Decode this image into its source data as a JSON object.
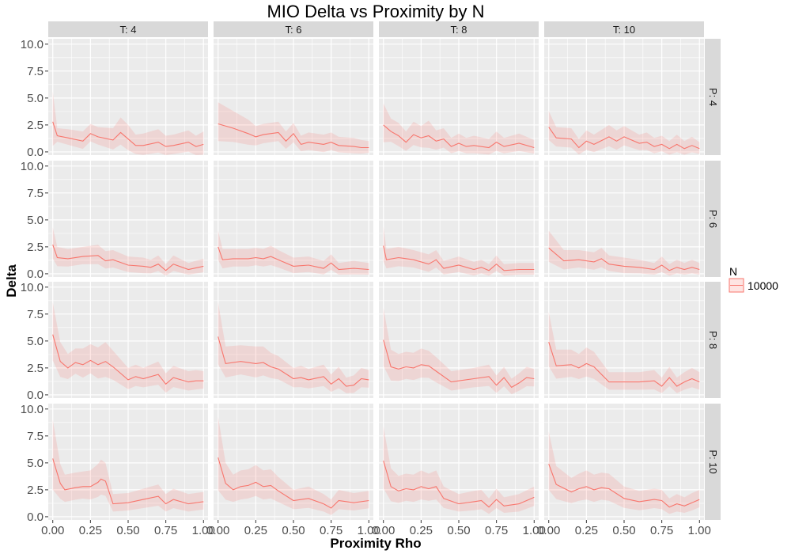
{
  "chart_data": {
    "type": "line",
    "title": "MIO Delta vs Proximity by N",
    "xlabel": "Proximity Rho",
    "ylabel": "Delta",
    "xlim": [
      -0.03,
      1.03
    ],
    "ylim": [
      -0.3,
      10.5
    ],
    "x_ticks": [
      "0.00",
      "0.25",
      "0.50",
      "0.75",
      "1.00"
    ],
    "y_ticks": [
      "0.0",
      "2.5",
      "5.0",
      "7.5",
      "10.0"
    ],
    "grid": true,
    "legend_position": "right",
    "legend": {
      "title": "N",
      "entries": [
        "10000"
      ]
    },
    "colors": {
      "line": "#F8766D",
      "ribbon": "#F8766D",
      "panel_bg": "#EBEBEB",
      "strip_bg": "#D9D9D9"
    },
    "columns": [
      "T: 4",
      "T: 6",
      "T: 8",
      "T: 10"
    ],
    "rows": [
      "P: 4",
      "P: 6",
      "P: 8",
      "P: 10"
    ],
    "panels": [
      [
        {
          "x": [
            0,
            0.03,
            0.1,
            0.2,
            0.25,
            0.3,
            0.4,
            0.45,
            0.5,
            0.55,
            0.6,
            0.7,
            0.75,
            0.8,
            0.9,
            0.95,
            1.0
          ],
          "y": [
            2.8,
            1.5,
            1.3,
            1.0,
            1.7,
            1.4,
            1.1,
            1.8,
            1.2,
            0.6,
            0.6,
            0.9,
            0.5,
            0.6,
            0.9,
            0.5,
            0.7
          ],
          "spread": [
            2.8,
            0.7,
            0.8,
            0.9,
            0.9,
            0.9,
            1.1,
            1.4,
            1.3,
            1.0,
            1.1,
            1.2,
            1.0,
            1.0,
            1.1,
            1.0,
            1.2
          ]
        },
        {
          "x": [
            0,
            0.1,
            0.2,
            0.25,
            0.3,
            0.4,
            0.45,
            0.5,
            0.55,
            0.6,
            0.7,
            0.75,
            0.8,
            0.9,
            0.95,
            1.0
          ],
          "y": [
            2.6,
            2.2,
            1.7,
            1.4,
            1.6,
            1.8,
            1.0,
            1.7,
            0.7,
            0.9,
            0.7,
            0.9,
            0.6,
            0.5,
            0.4,
            0.4
          ],
          "spread": [
            2.0,
            1.6,
            1.3,
            1.0,
            1.0,
            1.0,
            0.9,
            1.0,
            0.8,
            0.9,
            0.9,
            0.9,
            0.8,
            0.8,
            0.7,
            0.6
          ]
        },
        {
          "x": [
            0,
            0.05,
            0.1,
            0.15,
            0.2,
            0.25,
            0.3,
            0.35,
            0.4,
            0.45,
            0.5,
            0.55,
            0.6,
            0.7,
            0.75,
            0.8,
            0.9,
            1.0
          ],
          "y": [
            2.5,
            1.9,
            1.5,
            0.9,
            1.6,
            1.3,
            1.5,
            1.0,
            1.2,
            0.5,
            0.8,
            0.5,
            0.6,
            0.4,
            0.9,
            0.5,
            0.8,
            0.4
          ],
          "spread": [
            2.0,
            1.2,
            1.2,
            1.0,
            1.2,
            1.1,
            1.4,
            1.0,
            1.0,
            0.8,
            0.9,
            0.8,
            0.9,
            0.8,
            1.0,
            0.8,
            0.9,
            0.7
          ]
        },
        {
          "x": [
            0,
            0.05,
            0.15,
            0.2,
            0.25,
            0.3,
            0.4,
            0.45,
            0.5,
            0.6,
            0.65,
            0.7,
            0.75,
            0.8,
            0.85,
            0.9,
            0.95,
            1.0
          ],
          "y": [
            2.3,
            1.3,
            1.2,
            0.4,
            1.0,
            0.7,
            1.4,
            1.0,
            1.4,
            0.8,
            0.9,
            0.5,
            0.7,
            0.3,
            0.7,
            0.3,
            0.6,
            0.3
          ],
          "spread": [
            1.5,
            1.0,
            1.0,
            0.8,
            1.0,
            0.9,
            1.1,
            1.0,
            1.0,
            0.8,
            0.9,
            0.8,
            0.8,
            0.7,
            0.9,
            0.7,
            0.8,
            0.6
          ]
        }
      ],
      [
        {
          "x": [
            0,
            0.03,
            0.1,
            0.2,
            0.3,
            0.35,
            0.4,
            0.5,
            0.6,
            0.65,
            0.7,
            0.75,
            0.8,
            0.9,
            1.0
          ],
          "y": [
            2.7,
            1.5,
            1.4,
            1.6,
            1.7,
            1.2,
            1.3,
            0.8,
            0.7,
            0.6,
            0.9,
            0.3,
            0.9,
            0.4,
            0.7
          ],
          "spread": [
            1.6,
            1.0,
            0.9,
            0.9,
            1.0,
            0.9,
            0.9,
            0.8,
            0.8,
            0.7,
            0.8,
            0.6,
            0.8,
            0.6,
            0.7
          ]
        },
        {
          "x": [
            0,
            0.03,
            0.1,
            0.2,
            0.25,
            0.3,
            0.35,
            0.4,
            0.5,
            0.6,
            0.7,
            0.75,
            0.8,
            0.9,
            1.0
          ],
          "y": [
            2.5,
            1.3,
            1.4,
            1.4,
            1.5,
            1.4,
            1.6,
            1.3,
            0.7,
            0.8,
            0.5,
            1.0,
            0.4,
            0.5,
            0.4
          ],
          "spread": [
            1.5,
            1.0,
            0.9,
            0.9,
            0.9,
            0.9,
            1.0,
            0.9,
            0.8,
            0.8,
            0.7,
            0.8,
            0.6,
            0.7,
            0.6
          ]
        },
        {
          "x": [
            0,
            0.02,
            0.1,
            0.2,
            0.3,
            0.35,
            0.4,
            0.5,
            0.6,
            0.65,
            0.7,
            0.75,
            0.8,
            0.9,
            1.0
          ],
          "y": [
            2.6,
            1.3,
            1.5,
            1.3,
            0.9,
            1.3,
            0.5,
            0.8,
            0.4,
            0.6,
            0.3,
            0.9,
            0.3,
            0.4,
            0.4
          ],
          "spread": [
            1.8,
            1.0,
            1.0,
            0.9,
            0.9,
            0.9,
            0.7,
            0.8,
            0.7,
            0.7,
            0.6,
            0.8,
            0.6,
            0.6,
            0.6
          ]
        },
        {
          "x": [
            0,
            0.1,
            0.2,
            0.3,
            0.35,
            0.4,
            0.5,
            0.6,
            0.7,
            0.75,
            0.8,
            0.85,
            0.9,
            0.95,
            1.0
          ],
          "y": [
            2.4,
            1.2,
            1.3,
            1.1,
            1.4,
            0.9,
            0.7,
            0.6,
            0.4,
            0.8,
            0.3,
            0.6,
            0.4,
            0.6,
            0.4
          ],
          "spread": [
            1.6,
            1.0,
            0.9,
            0.9,
            1.0,
            0.8,
            0.8,
            0.7,
            0.6,
            0.8,
            0.6,
            0.7,
            0.6,
            0.7,
            0.6
          ]
        }
      ],
      [
        {
          "x": [
            0,
            0.05,
            0.1,
            0.15,
            0.2,
            0.25,
            0.3,
            0.35,
            0.4,
            0.5,
            0.55,
            0.6,
            0.7,
            0.75,
            0.8,
            0.9,
            0.95,
            1.0
          ],
          "y": [
            5.6,
            3.1,
            2.5,
            3.0,
            2.8,
            3.2,
            2.8,
            3.1,
            2.6,
            1.4,
            1.7,
            1.5,
            1.9,
            1.0,
            1.6,
            1.2,
            1.3,
            1.3
          ],
          "spread": [
            3.0,
            1.8,
            1.3,
            1.3,
            1.5,
            1.5,
            1.6,
            1.8,
            1.5,
            1.1,
            1.1,
            1.0,
            1.2,
            1.0,
            1.1,
            1.0,
            1.0,
            0.9
          ]
        },
        {
          "x": [
            0,
            0.05,
            0.15,
            0.25,
            0.3,
            0.35,
            0.4,
            0.5,
            0.55,
            0.6,
            0.7,
            0.75,
            0.8,
            0.85,
            0.9,
            0.95,
            1.0
          ],
          "y": [
            5.4,
            2.9,
            3.1,
            2.9,
            3.0,
            2.6,
            2.4,
            1.5,
            1.6,
            1.4,
            1.7,
            1.0,
            1.5,
            0.8,
            0.9,
            1.5,
            1.4
          ],
          "spread": [
            3.2,
            1.6,
            1.5,
            1.6,
            1.5,
            1.3,
            1.2,
            1.0,
            1.1,
            1.0,
            1.1,
            0.9,
            1.1,
            0.8,
            0.9,
            1.0,
            0.9
          ]
        },
        {
          "x": [
            0,
            0.05,
            0.1,
            0.15,
            0.2,
            0.25,
            0.3,
            0.35,
            0.45,
            0.5,
            0.6,
            0.7,
            0.75,
            0.8,
            0.85,
            0.9,
            0.95,
            1.0
          ],
          "y": [
            5.1,
            2.6,
            2.4,
            2.6,
            2.5,
            2.8,
            2.7,
            2.2,
            1.2,
            1.3,
            1.5,
            1.7,
            0.9,
            1.6,
            0.7,
            1.1,
            1.6,
            1.5
          ],
          "spread": [
            3.0,
            1.6,
            1.4,
            1.4,
            1.4,
            1.5,
            1.4,
            1.3,
            1.0,
            1.0,
            1.0,
            1.1,
            0.9,
            1.0,
            0.8,
            0.9,
            1.0,
            0.9
          ]
        },
        {
          "x": [
            0,
            0.05,
            0.15,
            0.2,
            0.25,
            0.3,
            0.4,
            0.5,
            0.6,
            0.7,
            0.75,
            0.8,
            0.85,
            0.9,
            0.95,
            1.0
          ],
          "y": [
            4.9,
            2.7,
            2.8,
            2.5,
            2.9,
            2.6,
            1.2,
            1.2,
            1.2,
            1.3,
            0.8,
            1.6,
            0.8,
            1.2,
            1.5,
            1.2
          ],
          "spread": [
            2.8,
            1.5,
            1.4,
            1.3,
            1.5,
            1.4,
            0.9,
            0.9,
            0.9,
            1.0,
            0.8,
            1.0,
            0.8,
            0.9,
            1.0,
            0.9
          ]
        }
      ],
      [
        {
          "x": [
            0,
            0.05,
            0.08,
            0.15,
            0.2,
            0.25,
            0.3,
            0.32,
            0.35,
            0.4,
            0.5,
            0.6,
            0.7,
            0.75,
            0.8,
            0.9,
            1.0
          ],
          "y": [
            5.4,
            3.1,
            2.5,
            2.7,
            2.8,
            2.8,
            3.2,
            3.5,
            3.3,
            1.2,
            1.3,
            1.6,
            1.9,
            1.2,
            1.6,
            1.2,
            1.4
          ],
          "spread": [
            3.6,
            1.8,
            1.4,
            1.4,
            1.4,
            1.5,
            1.7,
            1.8,
            1.7,
            0.9,
            0.9,
            1.0,
            1.1,
            0.9,
            1.0,
            0.9,
            0.9
          ]
        },
        {
          "x": [
            0,
            0.05,
            0.1,
            0.15,
            0.2,
            0.25,
            0.3,
            0.35,
            0.4,
            0.5,
            0.6,
            0.7,
            0.75,
            0.8,
            0.9,
            1.0
          ],
          "y": [
            5.5,
            3.1,
            2.5,
            2.8,
            2.9,
            3.2,
            2.8,
            2.9,
            2.4,
            1.5,
            1.7,
            1.2,
            0.8,
            1.5,
            1.3,
            1.5
          ],
          "spread": [
            3.8,
            1.9,
            1.4,
            1.5,
            1.5,
            1.6,
            1.5,
            1.5,
            1.3,
            1.0,
            1.1,
            0.9,
            0.8,
            1.0,
            0.9,
            0.9
          ]
        },
        {
          "x": [
            0,
            0.05,
            0.1,
            0.15,
            0.2,
            0.25,
            0.3,
            0.35,
            0.4,
            0.5,
            0.6,
            0.65,
            0.7,
            0.75,
            0.8,
            0.9,
            1.0
          ],
          "y": [
            5.2,
            2.8,
            2.4,
            2.6,
            2.5,
            2.8,
            2.6,
            2.8,
            1.7,
            1.2,
            1.4,
            1.5,
            0.9,
            1.6,
            1.0,
            1.2,
            1.8
          ],
          "spread": [
            3.2,
            1.7,
            1.4,
            1.4,
            1.4,
            1.5,
            1.4,
            1.5,
            1.1,
            0.9,
            1.0,
            1.0,
            0.8,
            1.0,
            0.8,
            0.9,
            1.0
          ]
        },
        {
          "x": [
            0,
            0.05,
            0.15,
            0.2,
            0.25,
            0.3,
            0.35,
            0.4,
            0.5,
            0.6,
            0.7,
            0.75,
            0.8,
            0.85,
            0.9,
            0.95,
            1.0
          ],
          "y": [
            4.9,
            3.0,
            2.3,
            2.6,
            2.8,
            2.5,
            2.7,
            2.6,
            1.7,
            1.4,
            1.6,
            1.5,
            0.9,
            1.2,
            1.0,
            1.3,
            1.6
          ],
          "spread": [
            3.0,
            1.7,
            1.3,
            1.4,
            1.5,
            1.4,
            1.4,
            1.4,
            1.1,
            1.0,
            1.0,
            1.0,
            0.8,
            0.9,
            0.8,
            0.9,
            0.9
          ]
        }
      ]
    ]
  }
}
